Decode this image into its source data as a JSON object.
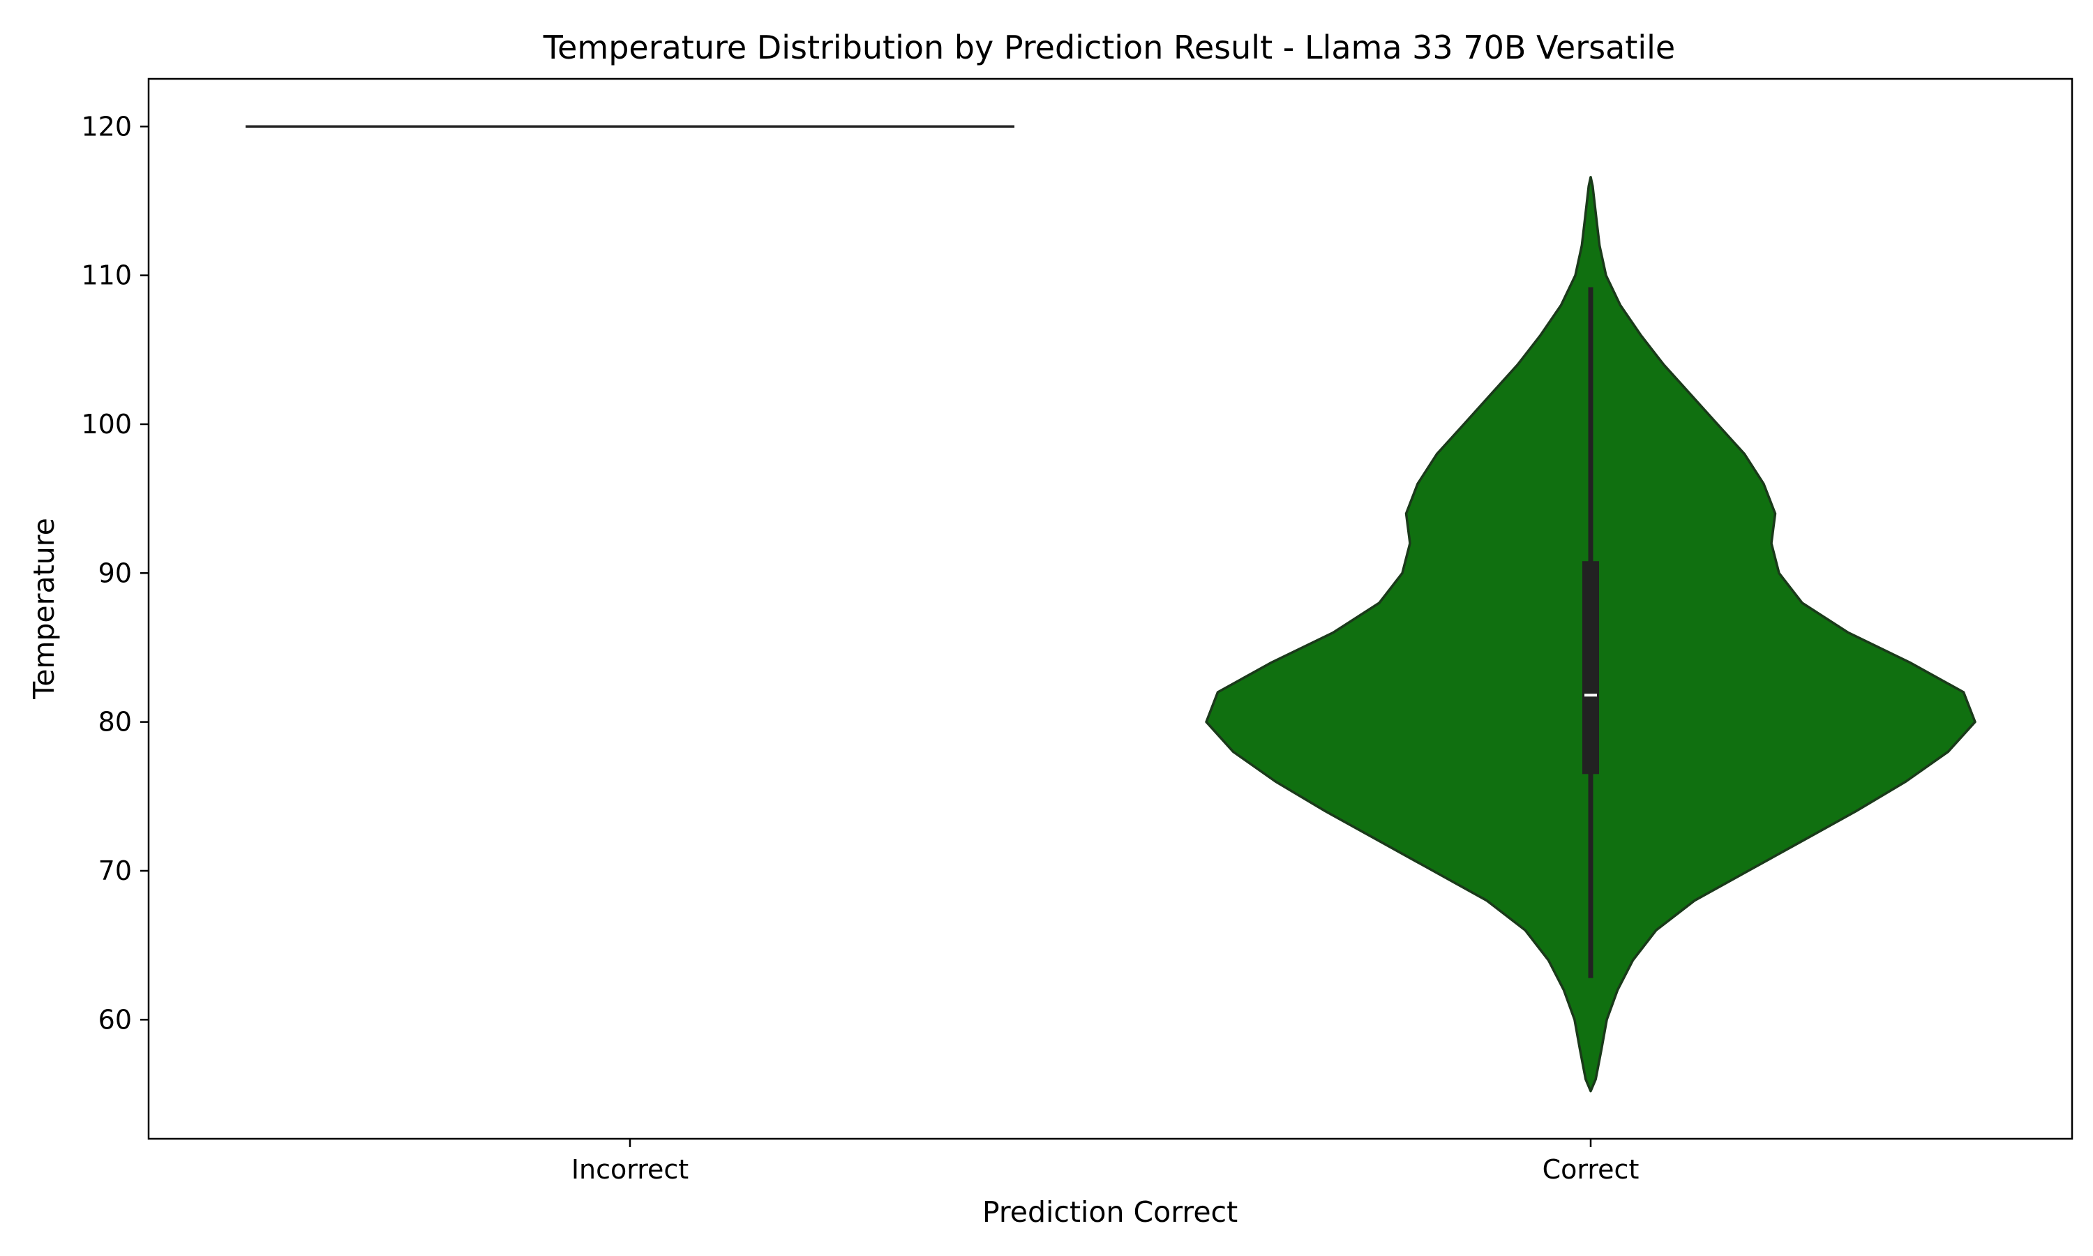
{
  "chart_data": {
    "type": "violin",
    "title": "Temperature Distribution by Prediction Result - Llama 33 70B Versatile",
    "xlabel": "Prediction Correct",
    "ylabel": "Temperature",
    "categories": [
      "Incorrect",
      "Correct"
    ],
    "ylim": [
      52,
      123.2
    ],
    "yticks": [
      60,
      70,
      80,
      90,
      100,
      110,
      120
    ],
    "grid": false,
    "series": [
      {
        "category": "Incorrect",
        "color": "#ffffff",
        "edge_color": "#222222",
        "min": 120,
        "max": 120,
        "median": 120,
        "q1": 120,
        "q3": 120,
        "density": [
          [
            120,
            1.0
          ]
        ]
      },
      {
        "category": "Correct",
        "color": "#107010",
        "edge_color": "#1a3a1a",
        "min": 62.8,
        "max": 109.2,
        "q1": 76.5,
        "median": 81.8,
        "q3": 90.8,
        "kde_min": 55.2,
        "kde_max": 116.6,
        "density": [
          [
            55.2,
            0.0
          ],
          [
            56.0,
            0.013
          ],
          [
            58.0,
            0.028
          ],
          [
            60.0,
            0.042
          ],
          [
            62.0,
            0.07
          ],
          [
            64.0,
            0.11
          ],
          [
            66.0,
            0.17
          ],
          [
            68.0,
            0.27
          ],
          [
            70.0,
            0.41
          ],
          [
            72.0,
            0.55
          ],
          [
            74.0,
            0.69
          ],
          [
            76.0,
            0.82
          ],
          [
            78.0,
            0.93
          ],
          [
            80.0,
            1.0
          ],
          [
            82.0,
            0.97
          ],
          [
            84.0,
            0.83
          ],
          [
            86.0,
            0.67
          ],
          [
            88.0,
            0.55
          ],
          [
            90.0,
            0.49
          ],
          [
            92.0,
            0.47
          ],
          [
            94.0,
            0.48
          ],
          [
            96.0,
            0.45
          ],
          [
            98.0,
            0.4
          ],
          [
            100.0,
            0.33
          ],
          [
            102.0,
            0.26
          ],
          [
            104.0,
            0.19
          ],
          [
            106.0,
            0.13
          ],
          [
            108.0,
            0.077
          ],
          [
            110.0,
            0.04
          ],
          [
            112.0,
            0.023
          ],
          [
            114.0,
            0.014
          ],
          [
            116.0,
            0.005
          ],
          [
            116.6,
            0.0
          ]
        ]
      }
    ]
  }
}
